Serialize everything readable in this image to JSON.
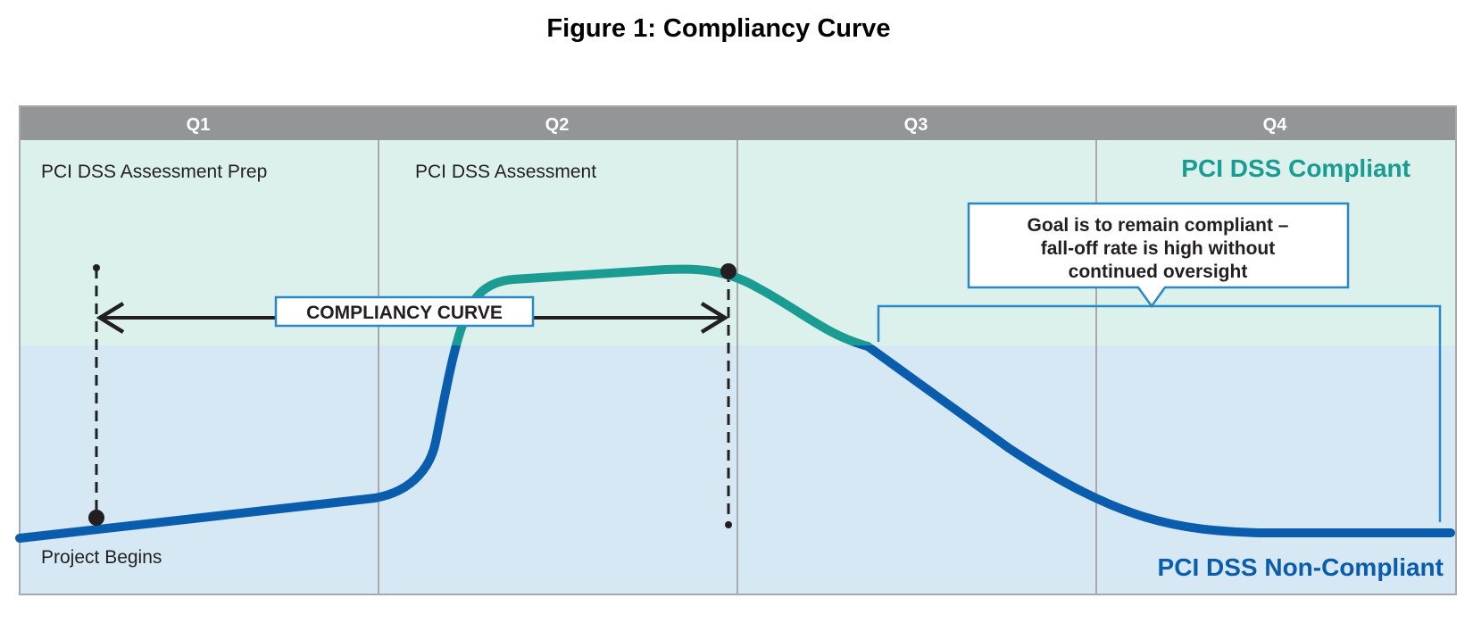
{
  "figure_title": "Figure 1: Compliancy Curve",
  "quarters": [
    "Q1",
    "Q2",
    "Q3",
    "Q4"
  ],
  "phase_labels": {
    "q1": "PCI DSS Assessment Prep",
    "q2": "PCI DSS Assessment"
  },
  "zone_labels": {
    "compliant": "PCI DSS Compliant",
    "non_compliant": "PCI DSS Non-Compliant"
  },
  "curve_label": "COMPLIANCY CURVE",
  "milestones": {
    "start": "Project Begins"
  },
  "callout": {
    "lines": [
      "Goal is to remain compliant –",
      "fall-off rate is high without",
      "continued oversight"
    ]
  },
  "colors": {
    "header_bar": "#939598",
    "compliant_zone": "#dcf0ec",
    "non_compliant_zone": "#d6e8f4",
    "divider": "#a7a9ac",
    "curve_blue": "#0a5cad",
    "curve_teal": "#1a9c93",
    "compliant_text": "#1a9c93",
    "non_compliant_text": "#0a5cad",
    "callout_border": "#2a88c6",
    "arrow": "#231f20"
  }
}
